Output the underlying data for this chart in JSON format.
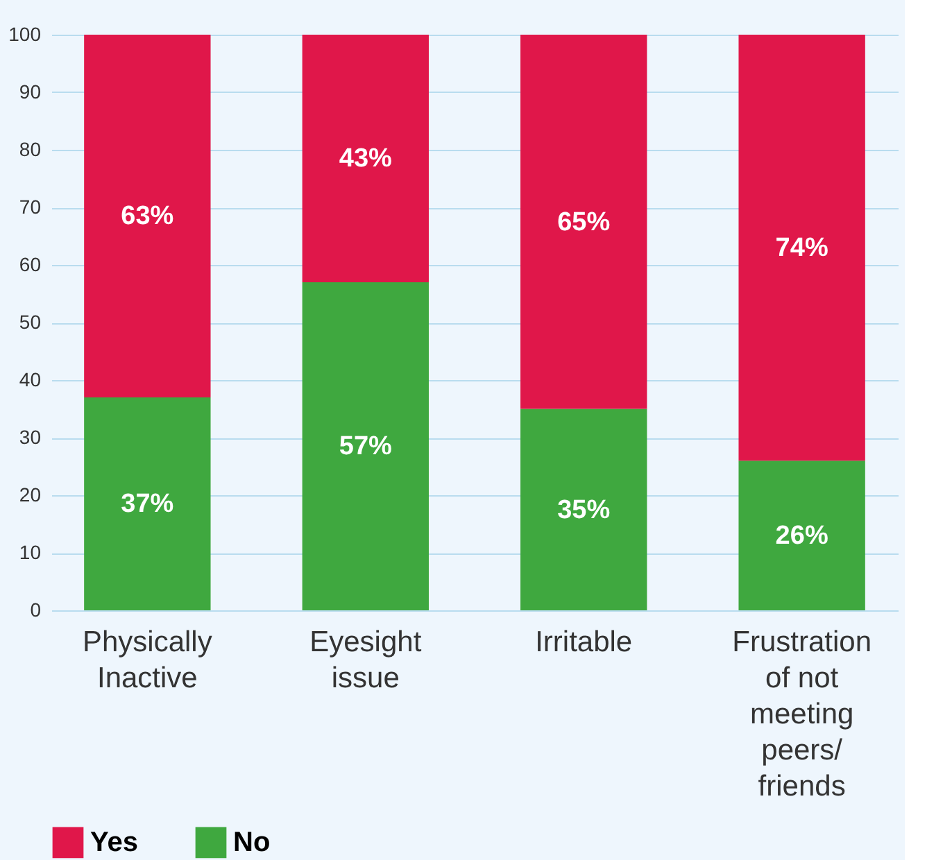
{
  "chart_data": {
    "type": "bar",
    "stacked": true,
    "categories": [
      "Physically Inactive",
      "Eyesight issue",
      "Irritable",
      "Frustration of not meeting peers/ friends"
    ],
    "series": [
      {
        "name": "No",
        "color": "#3fa83f",
        "values": [
          37,
          57,
          35,
          26
        ],
        "value_labels": [
          "37%",
          "57%",
          "35%",
          "26%"
        ]
      },
      {
        "name": "Yes",
        "color": "#e0174a",
        "values": [
          63,
          43,
          65,
          74
        ],
        "value_labels": [
          "63%",
          "43%",
          "65%",
          "74%"
        ]
      }
    ],
    "ylim": [
      0,
      100
    ],
    "yticks": [
      0,
      10,
      20,
      30,
      40,
      50,
      60,
      70,
      80,
      90,
      100
    ],
    "grid": "y",
    "legend": "bottom"
  }
}
